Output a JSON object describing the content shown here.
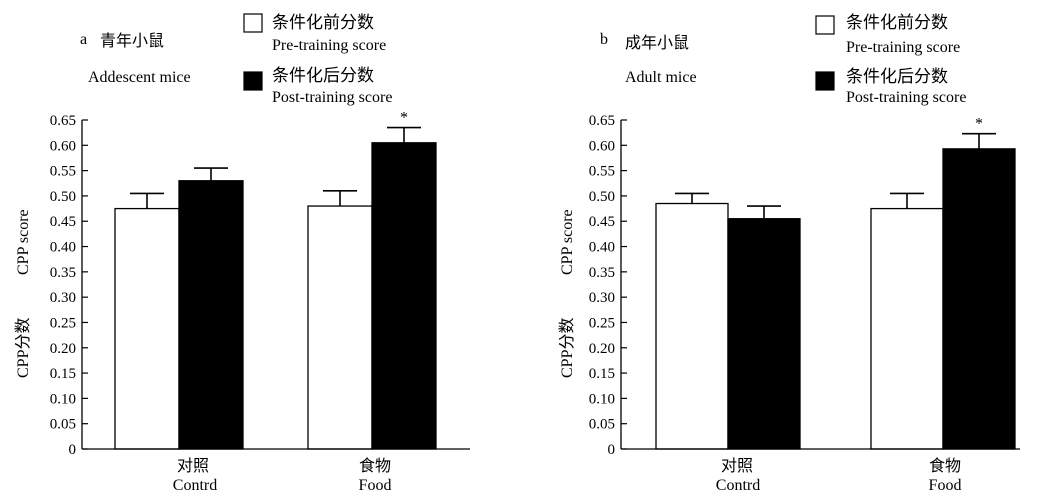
{
  "chart_data": [
    {
      "type": "bar",
      "panel_letter": "a",
      "title_cn": "青年小鼠",
      "title_en": "Addescent mice",
      "ylabel_cn": "CPP分数",
      "ylabel_en": "CPP score",
      "ylim": [
        0,
        0.65
      ],
      "yticks": [
        "0",
        "0.05",
        "0.10",
        "0.15",
        "0.20",
        "0.25",
        "0.30",
        "0.35",
        "0.40",
        "0.45",
        "0.50",
        "0.55",
        "0.60",
        "0.65"
      ],
      "categories": [
        {
          "cn": "对照",
          "en": "Contrd"
        },
        {
          "cn": "食物",
          "en": "Food"
        }
      ],
      "legend": {
        "pre_cn": "条件化前分数",
        "pre_en": "Pre-training score",
        "post_cn": "条件化后分数",
        "post_en": "Post-training score"
      },
      "series": [
        {
          "key": "pre",
          "fill": "#ffffff",
          "values": [
            0.475,
            0.48
          ],
          "errors": [
            0.03,
            0.03
          ]
        },
        {
          "key": "post",
          "fill": "#000000",
          "values": [
            0.53,
            0.605
          ],
          "errors": [
            0.025,
            0.03
          ]
        }
      ],
      "significance": [
        {
          "category_index": 1,
          "series": "post",
          "mark": "*"
        }
      ]
    },
    {
      "type": "bar",
      "panel_letter": "b",
      "title_cn": "成年小鼠",
      "title_en": "Adult mice",
      "ylabel_cn": "CPP分数",
      "ylabel_en": "CPP score",
      "ylim": [
        0,
        0.65
      ],
      "yticks": [
        "0",
        "0.05",
        "0.10",
        "0.15",
        "0.20",
        "0.25",
        "0.30",
        "0.35",
        "0.40",
        "0.45",
        "0.50",
        "0.55",
        "0.60",
        "0.65"
      ],
      "categories": [
        {
          "cn": "对照",
          "en": "Contrd"
        },
        {
          "cn": "食物",
          "en": "Food"
        }
      ],
      "legend": {
        "pre_cn": "条件化前分数",
        "pre_en": "Pre-training score",
        "post_cn": "条件化后分数",
        "post_en": "Post-training score"
      },
      "series": [
        {
          "key": "pre",
          "fill": "#ffffff",
          "values": [
            0.485,
            0.475
          ],
          "errors": [
            0.02,
            0.03
          ]
        },
        {
          "key": "post",
          "fill": "#000000",
          "values": [
            0.455,
            0.593
          ],
          "errors": [
            0.025,
            0.03
          ]
        }
      ],
      "significance": [
        {
          "category_index": 1,
          "series": "post",
          "mark": "*"
        }
      ]
    }
  ]
}
